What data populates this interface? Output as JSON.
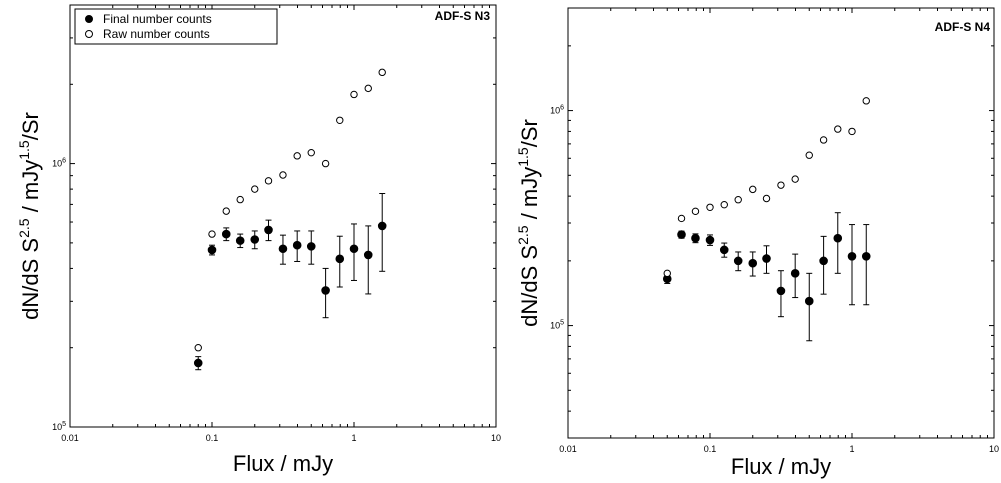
{
  "chart_data": [
    {
      "type": "scatter",
      "title": "ADF-S N3",
      "xlabel": "Flux / mJy",
      "ylabel": "dN/dS S^2.5 / mJy^1.5/Sr",
      "ylabel_parts": {
        "base": "dN/dS S",
        "exp1": "2.5",
        "mid": " / mJy",
        "exp2": "1.5",
        "tail": "/Sr"
      },
      "xscale": "log",
      "yscale": "log",
      "xlim": [
        0.01,
        10
      ],
      "ylim": [
        100000,
        4000000
      ],
      "x_ticks": [
        {
          "value": 0.01,
          "label": "0.01"
        },
        {
          "value": 0.1,
          "label": "0.1"
        },
        {
          "value": 1,
          "label": "1"
        },
        {
          "value": 10,
          "label": "10"
        }
      ],
      "y_ticks": [
        {
          "value": 100000,
          "label": "10",
          "sup": "5"
        },
        {
          "value": 1000000,
          "label": "10",
          "sup": "6"
        }
      ],
      "grid": false,
      "legend_position": "top-left",
      "series": [
        {
          "name": "Final number counts",
          "marker": "filled-circle",
          "x": [
            0.08,
            0.1,
            0.126,
            0.158,
            0.2,
            0.25,
            0.316,
            0.398,
            0.5,
            0.631,
            0.794,
            1.0,
            1.26,
            1.58
          ],
          "y": [
            175000,
            470000,
            540000,
            510000,
            515000,
            560000,
            475000,
            490000,
            485000,
            330000,
            435000,
            475000,
            450000,
            580000
          ],
          "err_low": [
            10000,
            20000,
            30000,
            30000,
            40000,
            50000,
            60000,
            65000,
            70000,
            70000,
            95000,
            115000,
            130000,
            190000
          ],
          "err_high": [
            10000,
            20000,
            30000,
            30000,
            40000,
            50000,
            60000,
            65000,
            70000,
            70000,
            95000,
            115000,
            130000,
            190000
          ]
        },
        {
          "name": "Raw number counts",
          "marker": "open-circle",
          "x": [
            0.08,
            0.1,
            0.126,
            0.158,
            0.2,
            0.25,
            0.316,
            0.398,
            0.5,
            0.631,
            0.794,
            1.0,
            1.26,
            1.58
          ],
          "y": [
            200000,
            540000,
            660000,
            730000,
            800000,
            860000,
            905000,
            1070000,
            1100000,
            1000000,
            1460000,
            1830000,
            1930000,
            2220000
          ]
        }
      ]
    },
    {
      "type": "scatter",
      "title": "ADF-S N4",
      "xlabel": "Flux / mJy",
      "ylabel": "dN/dS S^2.5 / mJy^1.5/Sr",
      "ylabel_parts": {
        "base": "dN/dS S",
        "exp1": "2.5",
        "mid": " / mJy",
        "exp2": "1.5",
        "tail": "/Sr"
      },
      "xscale": "log",
      "yscale": "log",
      "xlim": [
        0.01,
        10
      ],
      "ylim": [
        30000,
        3000000
      ],
      "x_ticks": [
        {
          "value": 0.01,
          "label": "0.01"
        },
        {
          "value": 0.1,
          "label": "0.1"
        },
        {
          "value": 1,
          "label": "1"
        },
        {
          "value": 10,
          "label": "10"
        }
      ],
      "y_ticks": [
        {
          "value": 100000,
          "label": "10",
          "sup": "5"
        },
        {
          "value": 1000000,
          "label": "10",
          "sup": "6"
        }
      ],
      "grid": false,
      "series": [
        {
          "name": "Final number counts",
          "marker": "filled-circle",
          "x": [
            0.05,
            0.063,
            0.079,
            0.1,
            0.126,
            0.158,
            0.2,
            0.25,
            0.316,
            0.398,
            0.5,
            0.631,
            0.794,
            1.0,
            1.26
          ],
          "y": [
            165000,
            265000,
            255000,
            250000,
            225000,
            200000,
            195000,
            205000,
            145000,
            175000,
            130000,
            200000,
            255000,
            210000,
            210000
          ],
          "err_low": [
            8000,
            10000,
            12000,
            14000,
            17000,
            20000,
            25000,
            30000,
            35000,
            40000,
            45000,
            60000,
            80000,
            85000,
            85000
          ],
          "err_high": [
            8000,
            10000,
            12000,
            14000,
            17000,
            20000,
            25000,
            30000,
            35000,
            40000,
            45000,
            60000,
            80000,
            85000,
            85000
          ]
        },
        {
          "name": "Raw number counts",
          "marker": "open-circle",
          "x": [
            0.05,
            0.063,
            0.079,
            0.1,
            0.126,
            0.158,
            0.2,
            0.25,
            0.316,
            0.398,
            0.5,
            0.631,
            0.794,
            1.0,
            1.26
          ],
          "y": [
            175000,
            315000,
            340000,
            355000,
            365000,
            385000,
            430000,
            390000,
            450000,
            480000,
            620000,
            730000,
            820000,
            800000,
            1110000
          ]
        }
      ]
    }
  ]
}
